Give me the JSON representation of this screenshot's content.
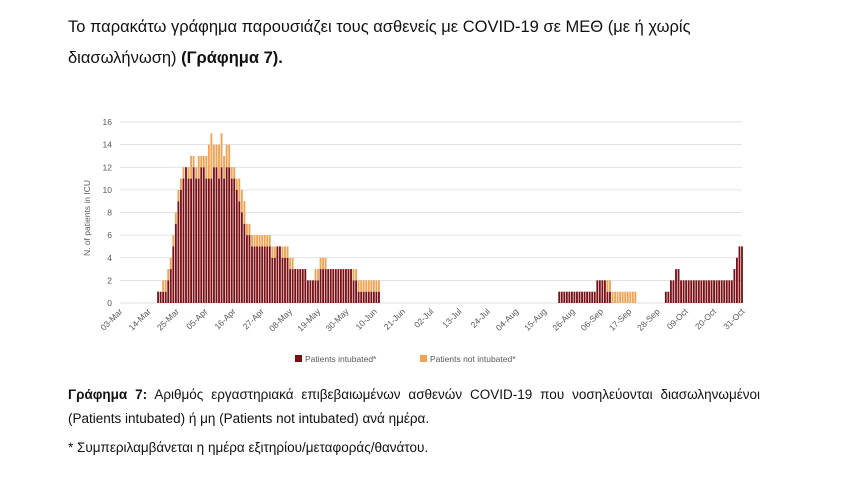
{
  "intro": {
    "text": "Το παρακάτω γράφημα παρουσιάζει τους ασθενείς με COVID-19 σε ΜΕΘ (με ή χωρίς διασωλήνωση) ",
    "figure_ref": "(Γράφημα 7)",
    "end": "."
  },
  "caption": {
    "label": "Γράφημα 7:",
    "text": " Αριθμός εργαστηριακά επιβεβαιωμένων ασθενών COVID-19 που νοσηλεύονται διασωληνωμένοι (Patients intubated) ή μη (Patients not intubated) ανά ημέρα."
  },
  "note": "* Συμπεριλαμβάνεται η ημέρα εξιτηρίου/μεταφοράς/θανάτου.",
  "colors": {
    "intubated": "#7a1016",
    "not_intubated": "#f2a250",
    "grid": "#d9d9d9",
    "axis_text": "#595959"
  },
  "chart_data": {
    "type": "bar",
    "stacked": true,
    "title": "",
    "ylabel": "N. of patients in ICU",
    "xlabel": "",
    "ylim": [
      0,
      16
    ],
    "yticks": [
      0,
      2,
      4,
      6,
      8,
      10,
      12,
      14,
      16
    ],
    "grid": true,
    "legend_position": "bottom",
    "x_start": "03-Mar",
    "x_end": "31-Oct",
    "x_tick_labels": [
      "03-Mar",
      "14-Mar",
      "25-Mar",
      "05-Apr",
      "16-Apr",
      "27-Apr",
      "08-May",
      "19-May",
      "30-May",
      "10-Jun",
      "21-Jun",
      "02-Jul",
      "13-Jul",
      "24-Jul",
      "04-Aug",
      "15-Aug",
      "26-Aug",
      "06-Sep",
      "17-Sep",
      "28-Sep",
      "09-Oct",
      "20-Oct",
      "31-Oct"
    ],
    "series": [
      {
        "name": "Patients intubated*",
        "values": [
          0,
          0,
          0,
          0,
          0,
          0,
          0,
          0,
          0,
          0,
          0,
          0,
          0,
          0,
          0,
          1,
          1,
          1,
          1,
          2,
          3,
          5,
          7,
          9,
          10,
          11,
          12,
          11,
          11,
          12,
          11,
          11,
          12,
          12,
          11,
          11,
          11,
          12,
          12,
          11,
          12,
          11,
          12,
          12,
          11,
          11,
          10,
          9,
          8,
          7,
          6,
          6,
          5,
          5,
          5,
          5,
          5,
          5,
          5,
          5,
          4,
          4,
          5,
          5,
          4,
          4,
          4,
          3,
          3,
          3,
          3,
          3,
          3,
          3,
          2,
          2,
          2,
          2,
          2,
          3,
          3,
          3,
          3,
          3,
          3,
          3,
          3,
          3,
          3,
          3,
          3,
          3,
          2,
          2,
          1,
          1,
          1,
          1,
          1,
          1,
          1,
          1,
          1,
          0,
          0,
          0,
          0,
          0,
          0,
          0,
          0,
          0,
          0,
          0,
          0,
          0,
          0,
          0,
          0,
          0,
          0,
          0,
          0,
          0,
          0,
          0,
          0,
          0,
          0,
          0,
          0,
          0,
          0,
          0,
          0,
          0,
          0,
          0,
          0,
          0,
          0,
          0,
          0,
          0,
          0,
          0,
          0,
          0,
          0,
          0,
          0,
          0,
          0,
          0,
          0,
          0,
          0,
          0,
          0,
          0,
          0,
          0,
          0,
          0,
          0,
          0,
          0,
          0,
          0,
          0,
          0,
          0,
          0,
          1,
          1,
          1,
          1,
          1,
          1,
          1,
          1,
          1,
          1,
          1,
          1,
          1,
          1,
          1,
          2,
          2,
          2,
          2,
          1,
          1,
          0,
          0,
          0,
          0,
          0,
          0,
          0,
          0,
          0,
          0,
          0,
          0,
          0,
          0,
          0,
          0,
          0,
          0,
          0,
          0,
          0,
          1,
          1,
          2,
          2,
          3,
          3,
          2,
          2,
          2,
          2,
          2,
          2,
          2,
          2,
          2,
          2,
          2,
          2,
          2,
          2,
          2,
          2,
          2,
          2,
          2,
          2,
          2,
          3,
          4,
          5,
          5
        ],
        "color": "#7a1016"
      },
      {
        "name": "Patients not intubated*",
        "values": [
          0,
          0,
          0,
          0,
          0,
          0,
          0,
          0,
          0,
          0,
          0,
          0,
          0,
          0,
          0,
          0,
          0,
          1,
          1,
          1,
          1,
          1,
          1,
          1,
          1,
          1,
          0,
          1,
          2,
          1,
          1,
          2,
          1,
          1,
          2,
          3,
          4,
          2,
          2,
          3,
          3,
          2,
          2,
          2,
          1,
          1,
          1,
          2,
          2,
          2,
          1,
          1,
          1,
          1,
          1,
          1,
          1,
          1,
          1,
          1,
          1,
          1,
          0,
          0,
          1,
          1,
          1,
          1,
          1,
          0,
          0,
          0,
          0,
          0,
          0,
          0,
          0,
          1,
          1,
          1,
          1,
          1,
          0,
          0,
          0,
          0,
          0,
          0,
          0,
          0,
          0,
          0,
          1,
          1,
          1,
          1,
          1,
          1,
          1,
          1,
          1,
          1,
          1,
          0,
          0,
          0,
          0,
          0,
          0,
          0,
          0,
          0,
          0,
          0,
          0,
          0,
          0,
          0,
          0,
          0,
          0,
          0,
          0,
          0,
          0,
          0,
          0,
          0,
          0,
          0,
          0,
          0,
          0,
          0,
          0,
          0,
          0,
          0,
          0,
          0,
          0,
          0,
          0,
          0,
          0,
          0,
          0,
          0,
          0,
          0,
          0,
          0,
          0,
          0,
          0,
          0,
          0,
          0,
          0,
          0,
          0,
          0,
          0,
          0,
          0,
          0,
          0,
          0,
          0,
          0,
          0,
          0,
          0,
          0,
          0,
          0,
          0,
          0,
          0,
          0,
          0,
          0,
          0,
          0,
          0,
          0,
          0,
          0,
          0,
          0,
          0,
          0,
          1,
          1,
          1,
          1,
          1,
          1,
          1,
          1,
          1,
          1,
          1,
          1,
          0,
          0,
          0,
          0,
          0,
          0,
          0,
          0,
          0,
          0,
          0,
          0,
          0,
          0,
          0,
          0,
          0,
          0,
          0,
          0,
          0,
          0,
          0,
          0,
          0,
          0,
          0,
          0,
          0,
          0,
          0,
          0,
          0,
          0,
          0,
          0,
          0,
          0,
          0,
          0,
          0,
          0,
          0,
          0,
          0,
          0
        ],
        "color": "#f2a250"
      }
    ]
  }
}
